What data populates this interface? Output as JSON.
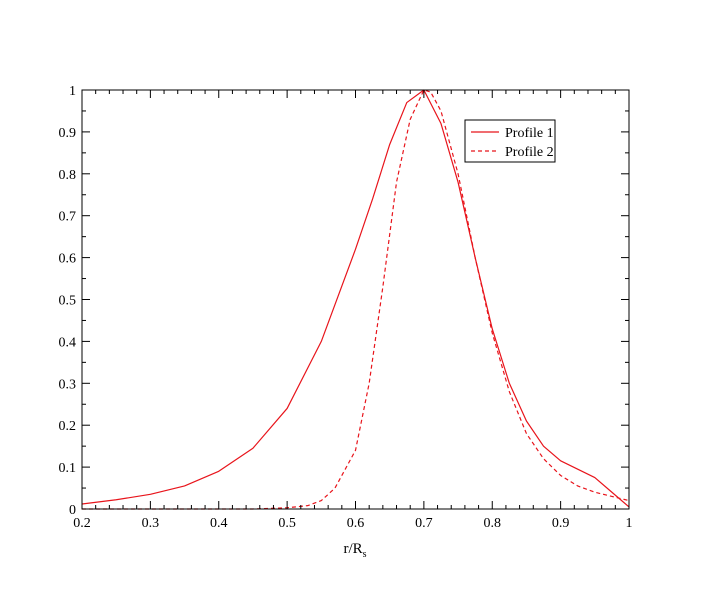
{
  "chart_data": {
    "type": "line",
    "xlabel_main": "r/R",
    "xlabel_sub": "s",
    "xlim": [
      0.2,
      1.0
    ],
    "ylim": [
      0,
      1
    ],
    "x_ticks": [
      0.2,
      0.3,
      0.4,
      0.5,
      0.6,
      0.7,
      0.8,
      0.9,
      1.0
    ],
    "x_tick_labels": [
      "0.2",
      "0.3",
      "0.4",
      "0.5",
      "0.6",
      "0.7",
      "0.8",
      "0.9",
      "1"
    ],
    "y_ticks": [
      0,
      0.1,
      0.2,
      0.3,
      0.4,
      0.5,
      0.6,
      0.7,
      0.8,
      0.9,
      1.0
    ],
    "y_tick_labels": [
      "0",
      "0.1",
      "0.2",
      "0.3",
      "0.4",
      "0.5",
      "0.6",
      "0.7",
      "0.8",
      "0.9",
      "1"
    ],
    "grid": false,
    "legend_position": "top-right",
    "series": [
      {
        "name": "Profile 1",
        "color": "#e8141b",
        "dash": "solid",
        "x": [
          0.2,
          0.25,
          0.3,
          0.35,
          0.4,
          0.45,
          0.5,
          0.55,
          0.6,
          0.625,
          0.65,
          0.675,
          0.7,
          0.725,
          0.75,
          0.775,
          0.8,
          0.825,
          0.85,
          0.875,
          0.9,
          0.925,
          0.95,
          0.975,
          1.0
        ],
        "y": [
          0.012,
          0.022,
          0.035,
          0.055,
          0.09,
          0.145,
          0.24,
          0.4,
          0.62,
          0.74,
          0.87,
          0.97,
          1.0,
          0.92,
          0.78,
          0.6,
          0.43,
          0.3,
          0.21,
          0.15,
          0.115,
          0.095,
          0.075,
          0.04,
          0.005
        ]
      },
      {
        "name": "Profile 2",
        "color": "#e8141b",
        "dash": "dashed",
        "x": [
          0.2,
          0.3,
          0.4,
          0.45,
          0.5,
          0.53,
          0.55,
          0.57,
          0.6,
          0.62,
          0.64,
          0.66,
          0.68,
          0.7,
          0.71,
          0.725,
          0.75,
          0.775,
          0.8,
          0.825,
          0.85,
          0.875,
          0.9,
          0.925,
          0.95,
          0.975,
          1.0
        ],
        "y": [
          0.0,
          0.0,
          0.0,
          0.0,
          0.003,
          0.008,
          0.02,
          0.05,
          0.14,
          0.3,
          0.53,
          0.78,
          0.93,
          1.0,
          0.995,
          0.95,
          0.8,
          0.6,
          0.42,
          0.28,
          0.18,
          0.12,
          0.08,
          0.055,
          0.04,
          0.03,
          0.02
        ]
      }
    ]
  }
}
